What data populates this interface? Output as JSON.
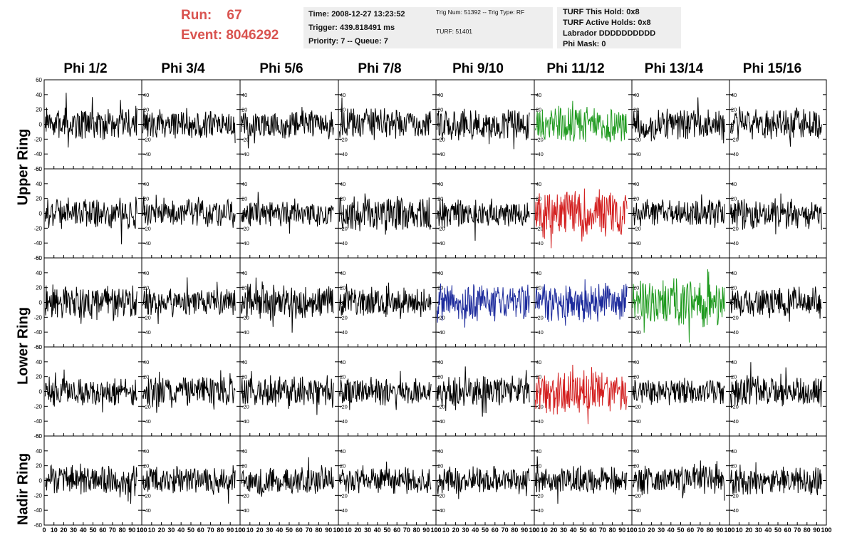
{
  "run_info": {
    "run_label": "Run:",
    "run_value": "67",
    "event_label": "Event:",
    "event_value": "8046292"
  },
  "time_box": {
    "time": "Time: 2008-12-27 13:23:52",
    "trigger": "Trigger: 439.818491 ms",
    "priority": "Priority: 7 -- Queue: 7"
  },
  "trig_box": {
    "trig": "Trig Num: 51392 -- Trig Type: RF",
    "turf": "TURF: 51401"
  },
  "turf_box": {
    "this_hold": "TURF This Hold: 0x8",
    "active_holds": "TURF Active Holds: 0x8",
    "labrador": "Labrador DDDDDDDDDD",
    "phi_mask": "Phi Mask: 0"
  },
  "columns": [
    "Phi 1/2",
    "Phi 3/4",
    "Phi 5/6",
    "Phi 7/8",
    "Phi 9/10",
    "Phi 11/12",
    "Phi 13/14",
    "Phi 15/16"
  ],
  "ring_labels": {
    "upper": "Upper Ring",
    "lower": "Lower Ring",
    "nadir": "Nadir Ring"
  },
  "colors": {
    "black": "#000000",
    "green": "#1f9a1f",
    "red": "#d32020",
    "blue": "#1c2a9c",
    "header_red": "#d9534f",
    "box_bg": "#eeeeee"
  },
  "chart_data": {
    "type": "line",
    "xlim": [
      0,
      100
    ],
    "ylim": [
      -60,
      60
    ],
    "x_ticks": [
      0,
      10,
      20,
      30,
      40,
      50,
      60,
      70,
      80,
      90,
      100
    ],
    "y_ticks": [
      -60,
      -40,
      -20,
      0,
      20,
      40,
      60
    ],
    "x_tick_labels": [
      "0",
      "10",
      "20",
      "30",
      "40",
      "50",
      "60",
      "70",
      "80",
      "90",
      "100"
    ],
    "y_tick_labels": [
      "-60",
      "-40",
      "-20",
      "0",
      "20",
      "40",
      "60"
    ],
    "trace_colors": [
      [
        "black",
        "black",
        "black",
        "black",
        "black",
        "green",
        "black",
        "black"
      ],
      [
        "black",
        "black",
        "black",
        "black",
        "black",
        "red",
        "black",
        "black"
      ],
      [
        "black",
        "black",
        "black",
        "black",
        "blue",
        "blue",
        "green",
        "black"
      ],
      [
        "black",
        "black",
        "black",
        "black",
        "black",
        "red",
        "black",
        "black"
      ],
      [
        "black",
        "black",
        "black",
        "black",
        "black",
        "black",
        "black",
        "black"
      ]
    ],
    "trace_amplitude": [
      [
        18,
        16,
        16,
        18,
        18,
        20,
        18,
        18
      ],
      [
        18,
        16,
        16,
        20,
        16,
        28,
        16,
        18
      ],
      [
        20,
        16,
        20,
        18,
        22,
        22,
        28,
        18
      ],
      [
        16,
        18,
        18,
        16,
        18,
        26,
        16,
        18
      ],
      [
        18,
        16,
        16,
        16,
        16,
        16,
        16,
        16
      ]
    ]
  }
}
